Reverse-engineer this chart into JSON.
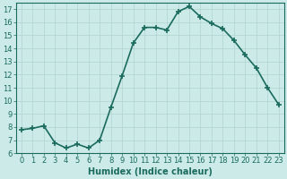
{
  "x": [
    0,
    1,
    2,
    3,
    4,
    5,
    6,
    7,
    8,
    9,
    10,
    11,
    12,
    13,
    14,
    15,
    16,
    17,
    18,
    19,
    20,
    21,
    22,
    23
  ],
  "y": [
    7.8,
    7.9,
    8.1,
    6.8,
    6.4,
    6.7,
    6.4,
    7.0,
    9.5,
    11.9,
    14.4,
    15.6,
    15.6,
    15.4,
    16.8,
    17.2,
    16.4,
    15.9,
    15.5,
    14.6,
    13.5,
    12.5,
    11.0,
    9.7
  ],
  "line_color": "#1a6b5e",
  "marker": "+",
  "marker_size": 4,
  "bg_color": "#cceae7",
  "grid_color": "#b0d4d0",
  "xlabel": "Humidex (Indice chaleur)",
  "ylim": [
    6,
    17.5
  ],
  "xlim": [
    -0.5,
    23.5
  ],
  "yticks": [
    6,
    7,
    8,
    9,
    10,
    11,
    12,
    13,
    14,
    15,
    16,
    17
  ],
  "xticks": [
    0,
    1,
    2,
    3,
    4,
    5,
    6,
    7,
    8,
    9,
    10,
    11,
    12,
    13,
    14,
    15,
    16,
    17,
    18,
    19,
    20,
    21,
    22,
    23
  ],
  "axis_color": "#1a6b5e",
  "label_fontsize": 7,
  "tick_fontsize": 6,
  "linewidth": 1.2
}
